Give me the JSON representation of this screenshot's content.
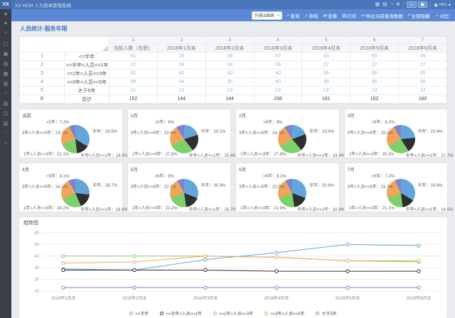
{
  "app": {
    "logo": "VX",
    "title": "XX HCM 人力资本管理系统",
    "header_icons": [
      {
        "name": "calendar-icon",
        "glyph": "▦"
      },
      {
        "name": "apps-icon",
        "glyph": "▤"
      },
      {
        "name": "history-icon",
        "glyph": "◔"
      },
      {
        "name": "globe-icon",
        "glyph": "⊕"
      }
    ],
    "window_buttons": [
      {
        "name": "user-card-button",
        "glyph": "▭"
      },
      {
        "name": "layout-button",
        "glyph": "▣"
      }
    ],
    "user": {
      "icon": "◉",
      "label": "mrc",
      "caret": "▾"
    }
  },
  "sidebar": {
    "icons": [
      {
        "name": "favorite-icon",
        "glyph": "★"
      },
      {
        "name": "heart-icon",
        "glyph": "♥"
      },
      {
        "name": "collapse-icon",
        "glyph": "⌃"
      },
      {
        "name": "module-1-icon",
        "glyph": "▢"
      },
      {
        "name": "module-2-icon",
        "glyph": "▣"
      },
      {
        "name": "module-3-icon",
        "glyph": "▤"
      },
      {
        "name": "module-4-icon",
        "glyph": "▦"
      },
      {
        "name": "module-5-icon",
        "glyph": "▥"
      },
      {
        "name": "module-6-icon",
        "glyph": "○"
      },
      {
        "name": "module-7-icon",
        "glyph": "▧"
      },
      {
        "name": "module-8-icon",
        "glyph": "◫"
      },
      {
        "name": "module-9-icon",
        "glyph": "▨"
      },
      {
        "name": "module-10-icon",
        "glyph": "⁘"
      },
      {
        "name": "home-icon",
        "glyph": "⌂"
      }
    ]
  },
  "toolbar": {
    "view_select": "列表&图表",
    "select_caret": "▾",
    "buttons": [
      {
        "name": "search-button",
        "glyph": "⌕",
        "label": "查询"
      },
      {
        "name": "audit-button",
        "glyph": "✓",
        "label": "审核"
      },
      {
        "name": "transform-button",
        "glyph": "⇄",
        "label": "变换"
      },
      {
        "name": "print-button",
        "glyph": "▤",
        "label": "打印"
      },
      {
        "name": "export-button",
        "glyph": "↦",
        "label": "导出当前查询数据"
      },
      {
        "name": "hide-all-button",
        "glyph": "×",
        "label": "全部隐藏"
      },
      {
        "name": "compare-button",
        "glyph": "↔",
        "label": "对比"
      }
    ]
  },
  "page": {
    "title": "人员统计-服务年限"
  },
  "table": {
    "col_numbers": [
      "1",
      "2",
      "3",
      "4",
      "5",
      "6",
      "7"
    ],
    "columns": [
      "当前人数（在职）",
      "2018年1月末",
      "2018年2月末",
      "2018年3月末",
      "2018年4月末",
      "2018年5月末",
      "2018年6月末"
    ],
    "rows": [
      {
        "num": "1",
        "label": "<=半年",
        "values": [
          51,
          29,
          28,
          37,
          43,
          50,
          49
        ]
      },
      {
        "num": "2",
        "label": "<=半年<人员<=1年",
        "values": [
          22,
          28,
          28,
          28,
          27,
          27,
          27
        ]
      },
      {
        "num": "3",
        "label": "<=1年<人员<=3年",
        "values": [
          32,
          40,
          40,
          40,
          39,
          36,
          35
        ]
      },
      {
        "num": "4",
        "label": "<=3年<人员<=5年",
        "values": [
          36,
          34,
          35,
          40,
          39,
          36,
          36
        ]
      },
      {
        "num": "5",
        "label": "大于5年",
        "values": [
          11,
          13,
          13,
          13,
          13,
          13,
          13
        ]
      },
      {
        "num": "6",
        "label": "总计",
        "values": [
          152,
          144,
          144,
          158,
          161,
          162,
          160
        ],
        "total": true
      }
    ]
  },
  "palette": [
    "#64a6dc",
    "#2f2f2f",
    "#7ed06a",
    "#f2a45a",
    "#7d84cf"
  ],
  "pie_slice_names": [
    "半年",
    "半年<人员<=1年",
    "1年<人员<=3年",
    "3年<人员<=5年",
    ">5年"
  ],
  "chart_data": [
    {
      "type": "pie",
      "title": "当前",
      "labels": [
        "半年",
        "半年<人员<=1年",
        "1年<人员<=3年",
        "3年<人员<=5年",
        ">5年"
      ],
      "values": [
        33.6,
        14.5,
        21.1,
        23.7,
        7.2
      ]
    },
    {
      "type": "pie",
      "title": "1月",
      "labels": [
        "半年",
        "半年<人员<=1年",
        "1年<人员<=3年",
        "3年<人员<=5年",
        ">5年"
      ],
      "values": [
        20.1,
        19.4,
        27.8,
        23.6,
        9.0
      ]
    },
    {
      "type": "pie",
      "title": "2月",
      "labels": [
        "半年",
        "半年<人员<=1年",
        "1年<人员<=3年",
        "3年<人员<=5年",
        ">5年"
      ],
      "values": [
        19.4,
        19.4,
        27.8,
        24.3,
        9.0
      ]
    },
    {
      "type": "pie",
      "title": "3月",
      "labels": [
        "半年",
        "半年<人员<=1年",
        "1年<人员<=3年",
        "3年<人员<=5年",
        ">5年"
      ],
      "values": [
        23.4,
        17.7,
        25.3,
        25.3,
        8.2
      ]
    },
    {
      "type": "pie",
      "title": "4月",
      "labels": [
        "半年",
        "半年<人员<=1年",
        "1年<人员<=3年",
        "3年<人员<=5年",
        ">5年"
      ],
      "values": [
        26.7,
        16.8,
        24.2,
        24.2,
        8.1
      ]
    },
    {
      "type": "pie",
      "title": "5月",
      "labels": [
        "半年",
        "半年<人员<=1年",
        "1年<人员<=3年",
        "3年<人员<=5年",
        ">5年"
      ],
      "values": [
        30.9,
        16.7,
        22.2,
        22.2,
        8.0
      ]
    },
    {
      "type": "pie",
      "title": "6月",
      "labels": [
        "半年",
        "半年<人员<=1年",
        "1年<人员<=3年",
        "3年<人员<=5年",
        ">5年"
      ],
      "values": [
        30.6,
        16.9,
        21.9,
        22.5,
        8.1
      ]
    },
    {
      "type": "pie",
      "title": "7月",
      "labels": [
        "半年",
        "半年<人员<=1年",
        "1年<人员<=3年",
        "3年<人员<=5年",
        ">5年"
      ],
      "values": [
        33.6,
        14.5,
        21.1,
        23.7,
        7.2
      ]
    },
    {
      "type": "line",
      "title": "趋势图",
      "x": [
        "2018年1月末",
        "2018年2月末",
        "2018年3月末",
        "2018年4月末",
        "2018年5月末",
        "2018年6月末"
      ],
      "ylim": [
        10,
        60
      ],
      "yticks": [
        10,
        20,
        30,
        40,
        50,
        60
      ],
      "grid": true,
      "legend_position": "bottom",
      "series": [
        {
          "name": "<=半年",
          "values": [
            29,
            28,
            37,
            43,
            50,
            49
          ]
        },
        {
          "name": "<=半年<人员<=1年",
          "values": [
            28,
            28,
            28,
            27,
            27,
            27
          ]
        },
        {
          "name": "<=1年<人员<=3年",
          "values": [
            40,
            40,
            40,
            39,
            36,
            35
          ]
        },
        {
          "name": "<=3年<人员<=5年",
          "values": [
            34,
            35,
            40,
            39,
            36,
            36
          ]
        },
        {
          "name": "大于5年",
          "values": [
            13,
            13,
            13,
            13,
            13,
            13
          ]
        }
      ]
    }
  ]
}
